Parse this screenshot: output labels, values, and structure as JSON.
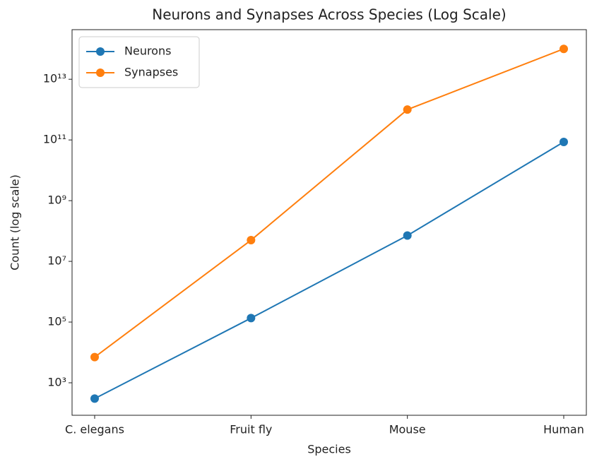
{
  "chart_data": {
    "type": "line",
    "title": "Neurons and Synapses Across Species (Log Scale)",
    "x_label": "Species",
    "y_label": "Count (log scale)",
    "categories": [
      "C. elegans",
      "Fruit fly",
      "Mouse",
      "Human"
    ],
    "series": [
      {
        "name": "Neurons",
        "color": "#1f77b4",
        "values": [
          302,
          135000,
          71000000,
          86000000000
        ]
      },
      {
        "name": "Synapses",
        "color": "#ff7f0e",
        "values": [
          7000,
          50000000,
          1000000000000,
          100000000000000
        ]
      }
    ],
    "log_scale": true,
    "ylim": [
      85,
      430000000000000
    ],
    "yticks": [
      {
        "value": 1000,
        "label": "10³"
      },
      {
        "value": 100000,
        "label": "10⁵"
      },
      {
        "value": 10000000,
        "label": "10⁷"
      },
      {
        "value": 1000000000,
        "label": "10⁹"
      },
      {
        "value": 100000000000,
        "label": "10¹¹"
      },
      {
        "value": 10000000000000,
        "label": "10¹³"
      }
    ],
    "legend": "upper left"
  }
}
